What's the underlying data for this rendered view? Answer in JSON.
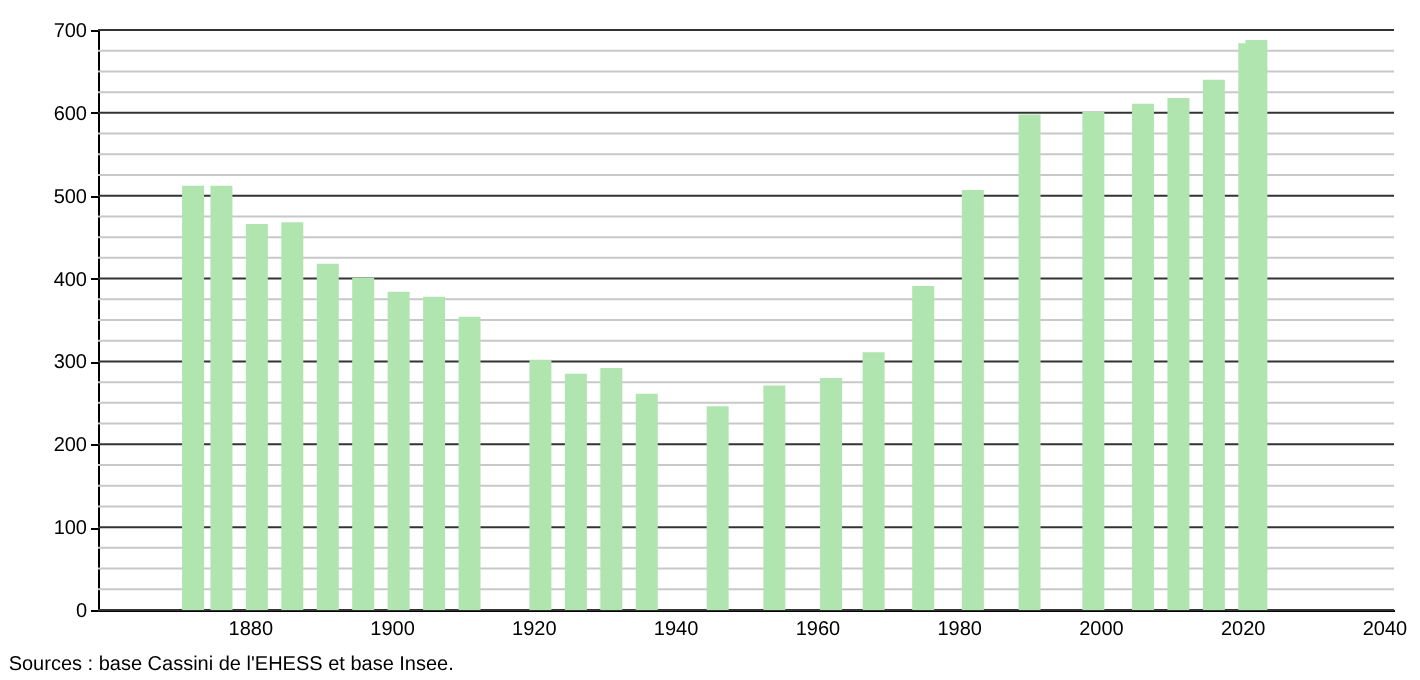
{
  "chart_data": {
    "type": "bar",
    "x": [
      1872,
      1876,
      1881,
      1886,
      1891,
      1896,
      1901,
      1906,
      1911,
      1921,
      1926,
      1931,
      1936,
      1946,
      1954,
      1962,
      1968,
      1975,
      1982,
      1990,
      1999,
      2006,
      2011,
      2016,
      2021,
      2022
    ],
    "values": [
      512,
      512,
      466,
      468,
      418,
      401,
      384,
      378,
      354,
      302,
      285,
      292,
      261,
      246,
      271,
      280,
      311,
      391,
      507,
      598,
      601,
      611,
      618,
      640,
      684,
      688
    ],
    "color": "#b0e5b0",
    "xlim": [
      1860,
      2040
    ],
    "xticks": [
      1880,
      1900,
      1920,
      1940,
      1960,
      1980,
      2000,
      2020,
      2040
    ],
    "ylim": [
      0,
      700
    ],
    "yticks": [
      0,
      {
        "value": 25,
        "label": null
      },
      {
        "value": 50,
        "label": null
      },
      {
        "value": 75,
        "label": null
      },
      100,
      {
        "value": 125,
        "label": null
      },
      {
        "value": 150,
        "label": null
      },
      {
        "value": 175,
        "label": null
      },
      200,
      {
        "value": 225,
        "label": null
      },
      {
        "value": 250,
        "label": null
      },
      {
        "value": 275,
        "label": null
      },
      300,
      {
        "value": 325,
        "label": null
      },
      {
        "value": 350,
        "label": null
      },
      {
        "value": 375,
        "label": null
      },
      400,
      {
        "value": 425,
        "label": null
      },
      {
        "value": 450,
        "label": null
      },
      {
        "value": 475,
        "label": null
      },
      500,
      {
        "value": 525,
        "label": null
      },
      {
        "value": 550,
        "label": null
      },
      {
        "value": 575,
        "label": null
      },
      600,
      {
        "value": 625,
        "label": null
      },
      {
        "value": 650,
        "label": null
      },
      {
        "value": 675,
        "label": null
      },
      700
    ],
    "grid": "y",
    "annotations": [
      "Sources : base Cassini de l'EHESS et base Insee."
    ]
  }
}
